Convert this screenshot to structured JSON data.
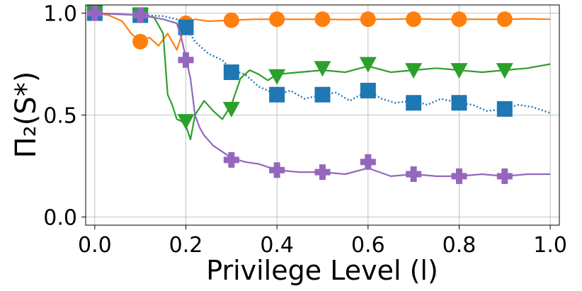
{
  "chart_data": {
    "type": "line",
    "title": "",
    "xlabel": "Privilege Level (l)",
    "ylabel": "Π₂(S*)",
    "xlim": [
      -0.02,
      1.02
    ],
    "ylim": [
      -0.04,
      1.04
    ],
    "x_ticks": [
      0.0,
      0.2,
      0.4,
      0.6,
      0.8,
      1.0
    ],
    "x_tick_labels": [
      "0.0",
      "0.2",
      "0.4",
      "0.6",
      "0.8",
      "1.0"
    ],
    "y_ticks": [
      0.0,
      0.5,
      1.0
    ],
    "y_tick_labels": [
      "0.0",
      "0.5",
      "1.0"
    ],
    "grid": true,
    "legend": "none",
    "series": [
      {
        "name": "orange-circle",
        "color": "#ff7f0e",
        "line_style": "solid",
        "marker": "circle",
        "x": [
          0.0,
          0.03,
          0.06,
          0.08,
          0.1,
          0.12,
          0.14,
          0.16,
          0.18,
          0.2,
          0.22,
          0.25,
          0.3,
          0.35,
          0.4,
          0.45,
          0.5,
          0.55,
          0.6,
          0.65,
          0.7,
          0.75,
          0.8,
          0.85,
          0.9,
          0.95,
          1.0
        ],
        "y": [
          1.0,
          0.99,
          0.96,
          0.9,
          0.86,
          0.88,
          0.84,
          0.9,
          0.82,
          0.95,
          0.97,
          0.96,
          0.965,
          0.97,
          0.97,
          0.97,
          0.97,
          0.968,
          0.97,
          0.97,
          0.972,
          0.97,
          0.97,
          0.97,
          0.97,
          0.972,
          0.97
        ],
        "marker_x": [
          0.0,
          0.1,
          0.2,
          0.3,
          0.4,
          0.5,
          0.6,
          0.7,
          0.8,
          0.9
        ],
        "marker_y": [
          1.0,
          0.86,
          0.95,
          0.965,
          0.97,
          0.97,
          0.97,
          0.97,
          0.97,
          0.97
        ]
      },
      {
        "name": "blue-square",
        "color": "#1f77b4",
        "line_style": "dotted",
        "marker": "square",
        "x": [
          0.0,
          0.05,
          0.1,
          0.15,
          0.18,
          0.2,
          0.22,
          0.25,
          0.28,
          0.3,
          0.33,
          0.36,
          0.4,
          0.43,
          0.46,
          0.5,
          0.53,
          0.56,
          0.6,
          0.63,
          0.66,
          0.7,
          0.73,
          0.76,
          0.8,
          0.83,
          0.86,
          0.9,
          0.93,
          0.96,
          1.0
        ],
        "y": [
          1.0,
          0.995,
          0.99,
          0.985,
          0.97,
          0.93,
          0.86,
          0.8,
          0.77,
          0.72,
          0.7,
          0.64,
          0.6,
          0.62,
          0.58,
          0.6,
          0.61,
          0.57,
          0.62,
          0.58,
          0.56,
          0.57,
          0.55,
          0.58,
          0.56,
          0.55,
          0.52,
          0.53,
          0.55,
          0.54,
          0.51
        ],
        "marker_x": [
          0.0,
          0.1,
          0.2,
          0.3,
          0.4,
          0.5,
          0.6,
          0.7,
          0.8,
          0.9
        ],
        "marker_y": [
          1.0,
          0.99,
          0.93,
          0.71,
          0.6,
          0.6,
          0.62,
          0.56,
          0.56,
          0.53
        ]
      },
      {
        "name": "green-triangle",
        "color": "#2ca02c",
        "line_style": "solid",
        "marker": "triangle-down",
        "x": [
          0.0,
          0.05,
          0.1,
          0.13,
          0.15,
          0.16,
          0.17,
          0.18,
          0.19,
          0.2,
          0.21,
          0.22,
          0.24,
          0.26,
          0.28,
          0.3,
          0.32,
          0.34,
          0.36,
          0.38,
          0.4,
          0.45,
          0.5,
          0.55,
          0.6,
          0.65,
          0.7,
          0.75,
          0.8,
          0.85,
          0.9,
          0.95,
          1.0
        ],
        "y": [
          1.0,
          0.995,
          0.99,
          0.98,
          0.9,
          0.6,
          0.55,
          0.48,
          0.47,
          0.45,
          0.38,
          0.5,
          0.57,
          0.52,
          0.48,
          0.55,
          0.68,
          0.72,
          0.7,
          0.67,
          0.7,
          0.71,
          0.72,
          0.71,
          0.74,
          0.71,
          0.72,
          0.73,
          0.72,
          0.71,
          0.72,
          0.73,
          0.75
        ],
        "marker_x": [
          0.0,
          0.1,
          0.2,
          0.3,
          0.4,
          0.5,
          0.6,
          0.7,
          0.8,
          0.9
        ],
        "marker_y": [
          1.0,
          0.99,
          0.47,
          0.53,
          0.69,
          0.73,
          0.75,
          0.72,
          0.72,
          0.72
        ]
      },
      {
        "name": "purple-plus",
        "color": "#9467bd",
        "line_style": "solid",
        "marker": "plus",
        "x": [
          0.0,
          0.05,
          0.1,
          0.15,
          0.18,
          0.19,
          0.2,
          0.21,
          0.22,
          0.23,
          0.24,
          0.26,
          0.28,
          0.3,
          0.33,
          0.36,
          0.4,
          0.45,
          0.5,
          0.55,
          0.6,
          0.65,
          0.7,
          0.75,
          0.8,
          0.85,
          0.9,
          0.95,
          1.0
        ],
        "y": [
          1.0,
          0.995,
          0.99,
          0.97,
          0.95,
          0.88,
          0.78,
          0.68,
          0.5,
          0.44,
          0.4,
          0.35,
          0.32,
          0.29,
          0.27,
          0.26,
          0.23,
          0.22,
          0.22,
          0.21,
          0.24,
          0.2,
          0.21,
          0.2,
          0.2,
          0.21,
          0.2,
          0.21,
          0.21
        ],
        "marker_x": [
          0.0,
          0.1,
          0.2,
          0.3,
          0.4,
          0.5,
          0.6,
          0.7,
          0.8,
          0.9
        ],
        "marker_y": [
          1.0,
          0.99,
          0.77,
          0.28,
          0.23,
          0.22,
          0.27,
          0.21,
          0.2,
          0.2
        ]
      }
    ]
  }
}
